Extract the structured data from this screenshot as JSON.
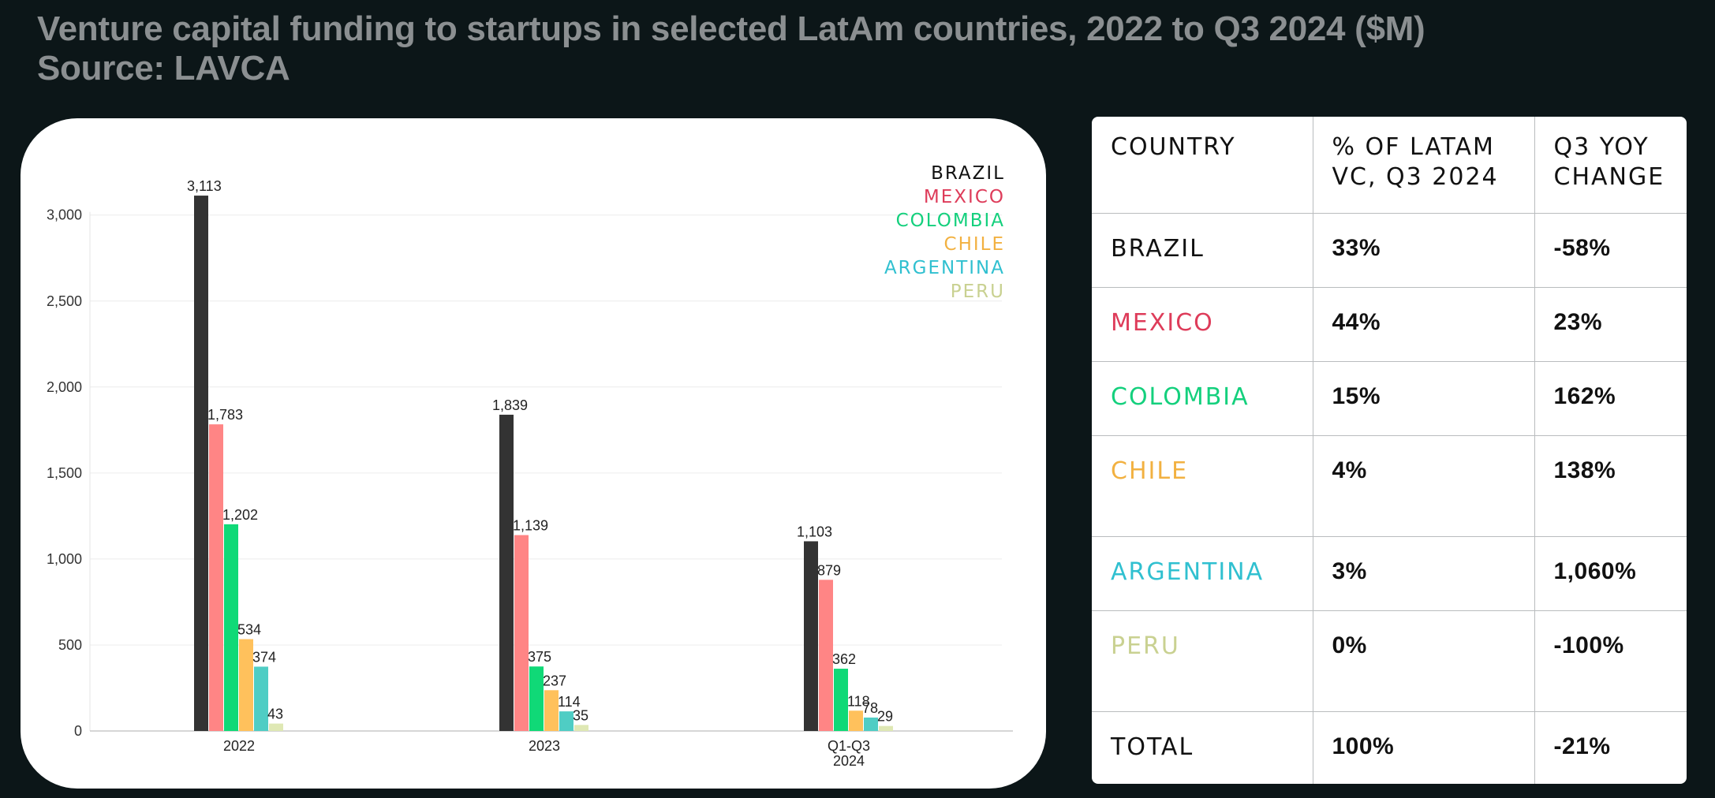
{
  "header": {
    "title": "Venture capital funding to startups in selected LatAm countries, 2022 to Q3 2024 ($M)",
    "source": "Source: LAVCA"
  },
  "colors": {
    "background": "#0c1618",
    "BRAZIL": "#333333",
    "MEXICO": "#ff8585",
    "COLOMBIA": "#10d977",
    "CHILE": "#ffc15c",
    "ARGENTINA": "#4fcdc4",
    "PERU": "#dfe8b4",
    "label_BRAZIL": "#111111",
    "label_MEXICO": "#de3c5a",
    "label_COLOMBIA": "#14d07d",
    "label_CHILE": "#f2b141",
    "label_ARGENTINA": "#30c0d0",
    "label_PERU": "#c9d191"
  },
  "chart_data": {
    "type": "bar",
    "categories": [
      [
        "2022"
      ],
      [
        "2023"
      ],
      [
        "Q1-Q3",
        "2024"
      ]
    ],
    "series": [
      {
        "name": "BRAZIL",
        "values": [
          3113,
          1839,
          1103
        ]
      },
      {
        "name": "MEXICO",
        "values": [
          1783,
          1139,
          879
        ]
      },
      {
        "name": "COLOMBIA",
        "values": [
          1202,
          375,
          362
        ]
      },
      {
        "name": "CHILE",
        "values": [
          534,
          237,
          118
        ]
      },
      {
        "name": "ARGENTINA",
        "values": [
          374,
          114,
          78
        ]
      },
      {
        "name": "PERU",
        "values": [
          43,
          35,
          29
        ]
      }
    ],
    "ylim": [
      0,
      3150
    ],
    "yticks": [
      0,
      500,
      1000,
      1500,
      2000,
      2500,
      3000
    ],
    "grid": true,
    "legend": "top-right"
  },
  "table": {
    "headers": [
      "COUNTRY",
      "% OF LATAM VC, Q3 2024",
      "Q3 YOY CHANGE"
    ],
    "rows": [
      {
        "country": "BRAZIL",
        "share": "33%",
        "yoy": "-58%"
      },
      {
        "country": "MEXICO",
        "share": "44%",
        "yoy": "23%"
      },
      {
        "country": "COLOMBIA",
        "share": "15%",
        "yoy": "162%"
      },
      {
        "country": "CHILE",
        "share": "4%",
        "yoy": "138%"
      },
      {
        "country": "ARGENTINA",
        "share": "3%",
        "yoy": "1,060%"
      },
      {
        "country": "PERU",
        "share": "0%",
        "yoy": "-100%"
      }
    ],
    "total": {
      "country": "TOTAL",
      "share": "100%",
      "yoy": "-21%"
    }
  }
}
